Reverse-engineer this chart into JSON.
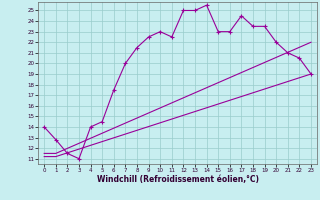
{
  "xlabel": "Windchill (Refroidissement éolien,°C)",
  "bg_color": "#c8eef0",
  "line_color": "#990099",
  "grid_color": "#99cccc",
  "xlim": [
    -0.5,
    23.5
  ],
  "ylim": [
    10.5,
    25.8
  ],
  "xticks": [
    0,
    1,
    2,
    3,
    4,
    5,
    6,
    7,
    8,
    9,
    10,
    11,
    12,
    13,
    14,
    15,
    16,
    17,
    18,
    19,
    20,
    21,
    22,
    23
  ],
  "yticks": [
    11,
    12,
    13,
    14,
    15,
    16,
    17,
    18,
    19,
    20,
    21,
    22,
    23,
    24,
    25
  ],
  "line1_x": [
    0,
    1,
    2,
    3,
    4,
    5,
    6,
    7,
    8,
    9,
    10,
    11,
    12,
    13,
    14,
    15,
    16,
    17,
    18,
    19,
    20,
    21,
    22,
    23
  ],
  "line1_y": [
    14.0,
    12.8,
    11.5,
    11.0,
    14.0,
    14.5,
    17.5,
    20.0,
    21.5,
    22.5,
    23.0,
    22.5,
    25.0,
    25.0,
    25.5,
    23.0,
    23.0,
    24.5,
    23.5,
    23.5,
    22.0,
    21.0,
    20.5,
    19.0
  ],
  "line2_x": [
    0,
    1,
    23
  ],
  "line2_y": [
    11.2,
    11.2,
    19.0
  ],
  "line3_x": [
    0,
    1,
    23
  ],
  "line3_y": [
    11.5,
    11.5,
    22.0
  ]
}
